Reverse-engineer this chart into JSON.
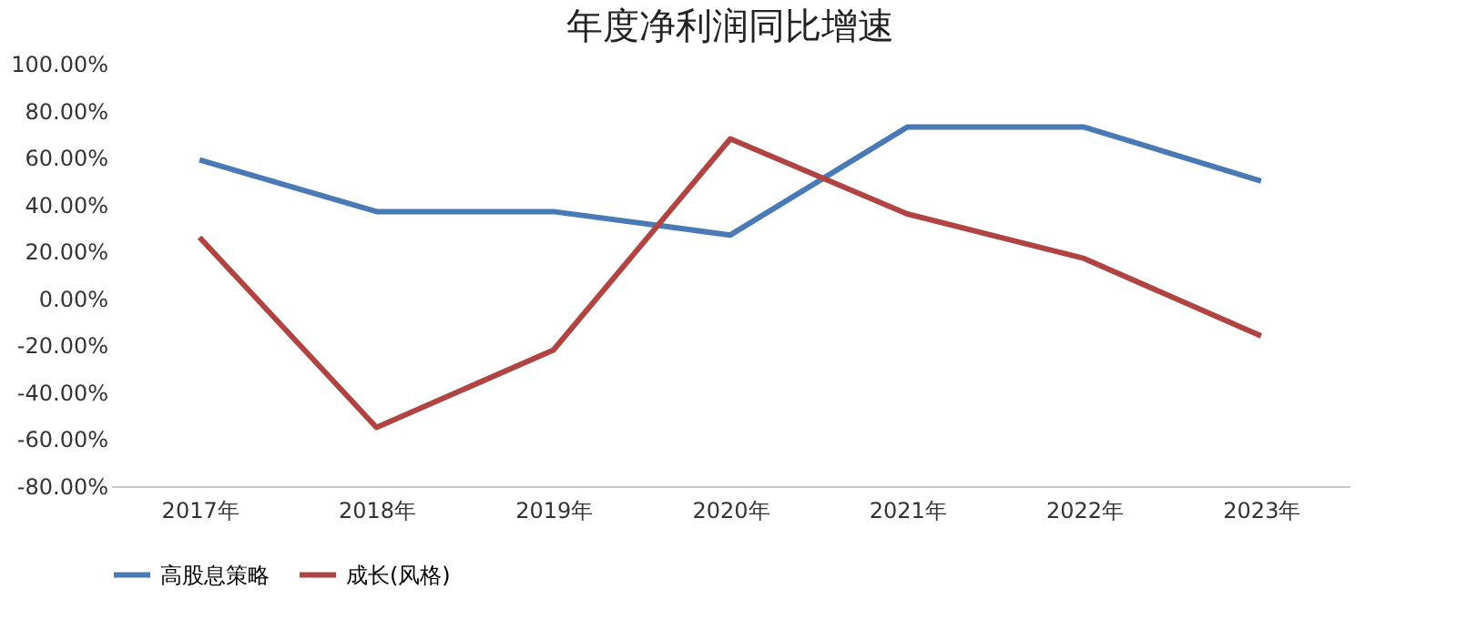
{
  "chart_data": {
    "type": "line",
    "title": "年度净利润同比增速",
    "categories": [
      "2017年",
      "2018年",
      "2019年",
      "2020年",
      "2021年",
      "2022年",
      "2023年"
    ],
    "series": [
      {
        "name": "高股息策略",
        "color": "#4a7ab5",
        "values": [
          59,
          37,
          37,
          27,
          73,
          73,
          50
        ]
      },
      {
        "name": "成长(风格)",
        "color": "#b04442",
        "values": [
          26,
          -55,
          -22,
          68,
          36,
          17,
          -16
        ]
      }
    ],
    "ylim": [
      -80,
      100
    ],
    "yticks": [
      {
        "value": -80,
        "label": "-80.00%"
      },
      {
        "value": -60,
        "label": "-60.00%"
      },
      {
        "value": -40,
        "label": "-40.00%"
      },
      {
        "value": -20,
        "label": "-20.00%"
      },
      {
        "value": 0,
        "label": "0.00%"
      },
      {
        "value": 20,
        "label": "20.00%"
      },
      {
        "value": 40,
        "label": "40.00%"
      },
      {
        "value": 60,
        "label": "60.00%"
      },
      {
        "value": 80,
        "label": "80.00%"
      },
      {
        "value": 100,
        "label": "100.00%"
      }
    ],
    "grid": false,
    "legend": "bottom",
    "marker": "none",
    "line_style": "solid"
  }
}
